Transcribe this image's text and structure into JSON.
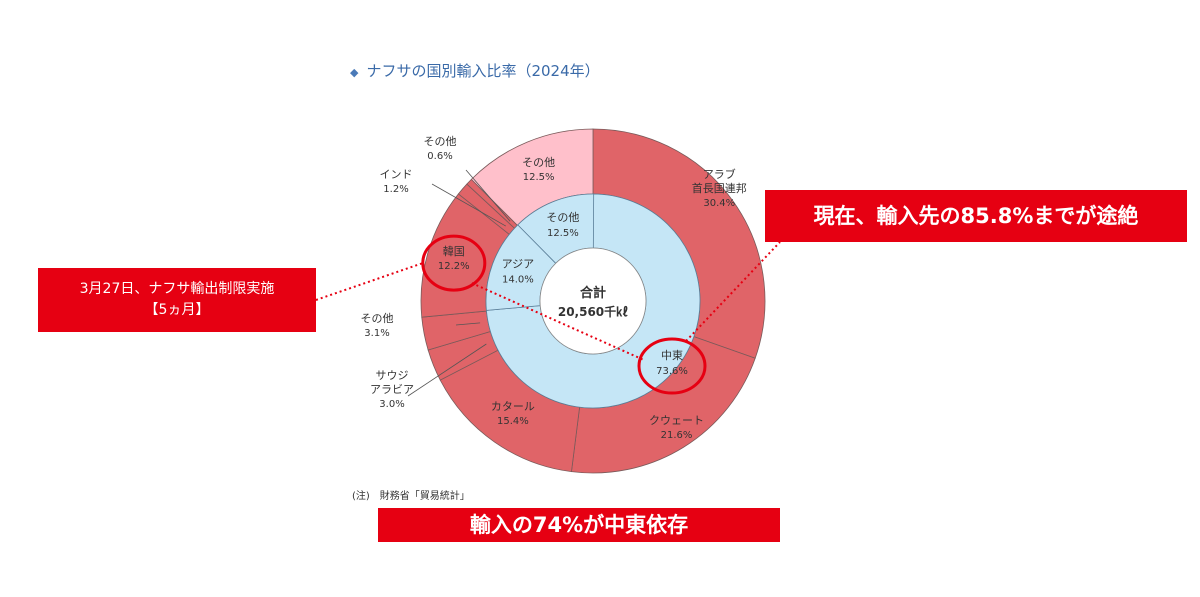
{
  "chart_data": {
    "type": "donut",
    "title": "ナフサの国別輸入比率（2024年）",
    "center_label": {
      "line1": "合計",
      "line2": "20,560千㎘"
    },
    "inner_ring": [
      {
        "name": "中東",
        "value": 73.6,
        "label": "73.6%"
      },
      {
        "name": "アジア",
        "value": 14.0,
        "label": "14.0%"
      },
      {
        "name": "その他",
        "value": 12.5,
        "label": "12.5%"
      }
    ],
    "outer_ring": [
      {
        "name": "アラブ首長国連邦",
        "lines": [
          "アラブ",
          "首長国連邦"
        ],
        "value": 30.4,
        "label": "30.4%"
      },
      {
        "name": "クウェート",
        "lines": [
          "クウェート"
        ],
        "value": 21.6,
        "label": "21.6%"
      },
      {
        "name": "カタール",
        "lines": [
          "カタール"
        ],
        "value": 15.4,
        "label": "15.4%"
      },
      {
        "name": "サウジアラビア",
        "lines": [
          "サウジ",
          "アラビア"
        ],
        "value": 3.0,
        "label": "3.0%"
      },
      {
        "name": "その他",
        "lines": [
          "その他"
        ],
        "value": 3.1,
        "label": "3.1%"
      },
      {
        "name": "韓国",
        "lines": [
          "韓国"
        ],
        "value": 12.2,
        "label": "12.2%"
      },
      {
        "name": "インド",
        "lines": [
          "インド"
        ],
        "value": 1.2,
        "label": "1.2%"
      },
      {
        "name": "その他",
        "lines": [
          "その他"
        ],
        "value": 0.6,
        "label": "0.6%"
      },
      {
        "name": "その他",
        "lines": [
          "その他"
        ],
        "value": 12.5,
        "label": "12.5%"
      }
    ],
    "colors": {
      "middle_east": "#e06468",
      "asia": "#e06468",
      "other_outer": "#ffc0cb",
      "inner_fill": "#c5e6f6",
      "center": "#ffffff",
      "highlight": "#e60012"
    },
    "note": "(注)　財務省「貿易統計」"
  },
  "callouts": {
    "left_line1": "3月27日、ナフサ輸出制限実施",
    "left_line2": "【5ヵ月】",
    "right": "現在、輸入先の85.8%までが途絶",
    "bottom": "輸入の74%が中東依存"
  }
}
